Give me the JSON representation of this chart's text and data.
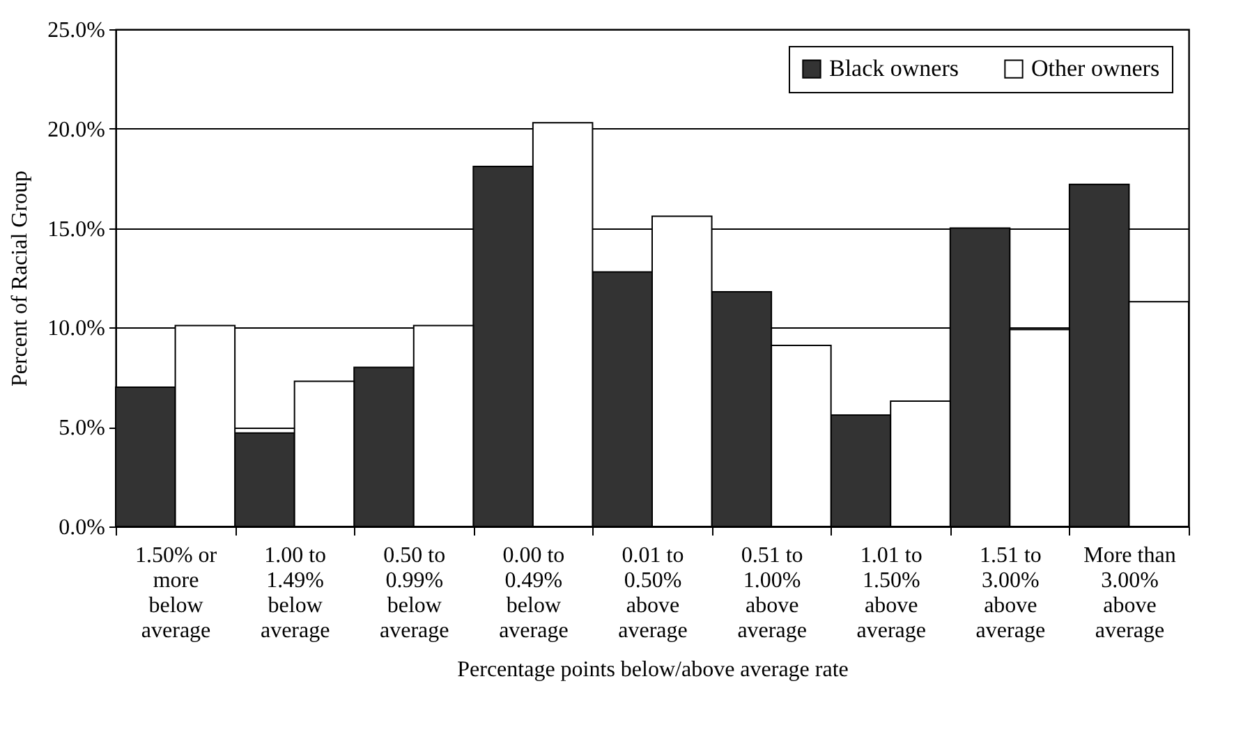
{
  "chart_data": {
    "type": "bar",
    "xlabel": "Percentage points below/above average rate",
    "ylabel": "Percent of Racial Group",
    "categories": [
      "1.50% or more below average",
      "1.00 to 1.49% below average",
      "0.50 to 0.99% below average",
      "0.00 to 0.49% below average",
      "0.01 to 0.50% above average",
      "0.51 to 1.00% above average",
      "1.01 to 1.50% above average",
      "1.51 to 3.00% above average",
      "More than 3.00% above average"
    ],
    "series": [
      {
        "name": "Black owners",
        "color": "#333333",
        "values": [
          7.0,
          4.7,
          8.0,
          18.1,
          12.8,
          11.8,
          5.6,
          15.0,
          17.2
        ]
      },
      {
        "name": "Other owners",
        "color": "#ffffff",
        "values": [
          10.1,
          7.3,
          10.1,
          20.3,
          15.6,
          9.1,
          6.3,
          9.9,
          11.3
        ]
      }
    ],
    "ylim": [
      0,
      25
    ],
    "yticks": [
      {
        "value": 0,
        "label": "0.0%"
      },
      {
        "value": 5,
        "label": "5.0%"
      },
      {
        "value": 10,
        "label": "10.0%"
      },
      {
        "value": 15,
        "label": "15.0%"
      },
      {
        "value": 20,
        "label": "20.0%"
      },
      {
        "value": 25,
        "label": "25.0%"
      }
    ],
    "grid": "y",
    "legend": "top right"
  }
}
